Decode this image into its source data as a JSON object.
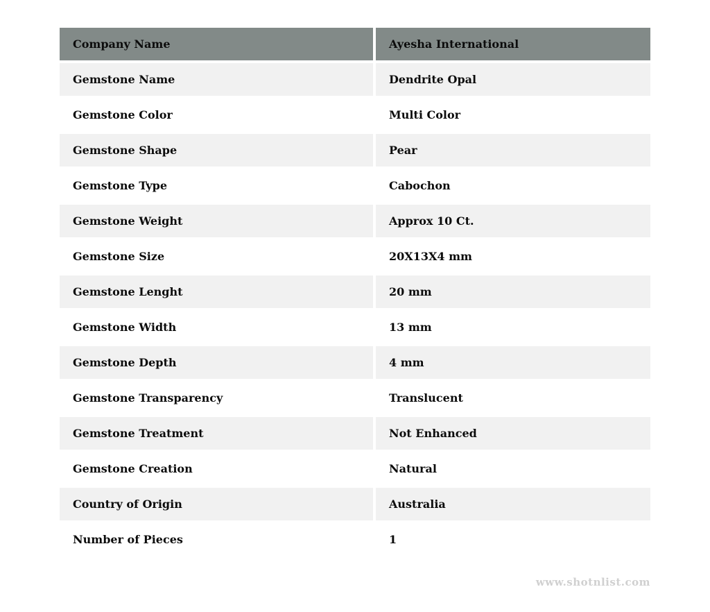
{
  "table": {
    "header": {
      "label": "Company Name",
      "value": "Ayesha International"
    },
    "rows": [
      {
        "label": "Gemstone Name",
        "value": "Dendrite Opal"
      },
      {
        "label": "Gemstone Color",
        "value": "Multi Color"
      },
      {
        "label": "Gemstone Shape",
        "value": "Pear"
      },
      {
        "label": "Gemstone Type",
        "value": "Cabochon"
      },
      {
        "label": "Gemstone Weight",
        "value": "Approx 10 Ct."
      },
      {
        "label": "Gemstone Size",
        "value": "20X13X4 mm"
      },
      {
        "label": "Gemstone Lenght",
        "value": "20 mm"
      },
      {
        "label": "Gemstone Width",
        "value": "13 mm"
      },
      {
        "label": "Gemstone Depth",
        "value": "4 mm"
      },
      {
        "label": "Gemstone Transparency",
        "value": "Translucent"
      },
      {
        "label": "Gemstone Treatment",
        "value": "Not Enhanced"
      },
      {
        "label": "Gemstone Creation",
        "value": "Natural"
      },
      {
        "label": "Country of Origin",
        "value": "Australia"
      },
      {
        "label": "Number of Pieces",
        "value": "1"
      }
    ],
    "colors": {
      "header_bg": "#828a88",
      "row_shaded_bg": "#f1f1f1",
      "row_plain_bg": "#ffffff",
      "text": "#0c0c0c"
    }
  },
  "footer": {
    "watermark": "www.shotnlist.com",
    "watermark_color": "#d0d0d0"
  }
}
